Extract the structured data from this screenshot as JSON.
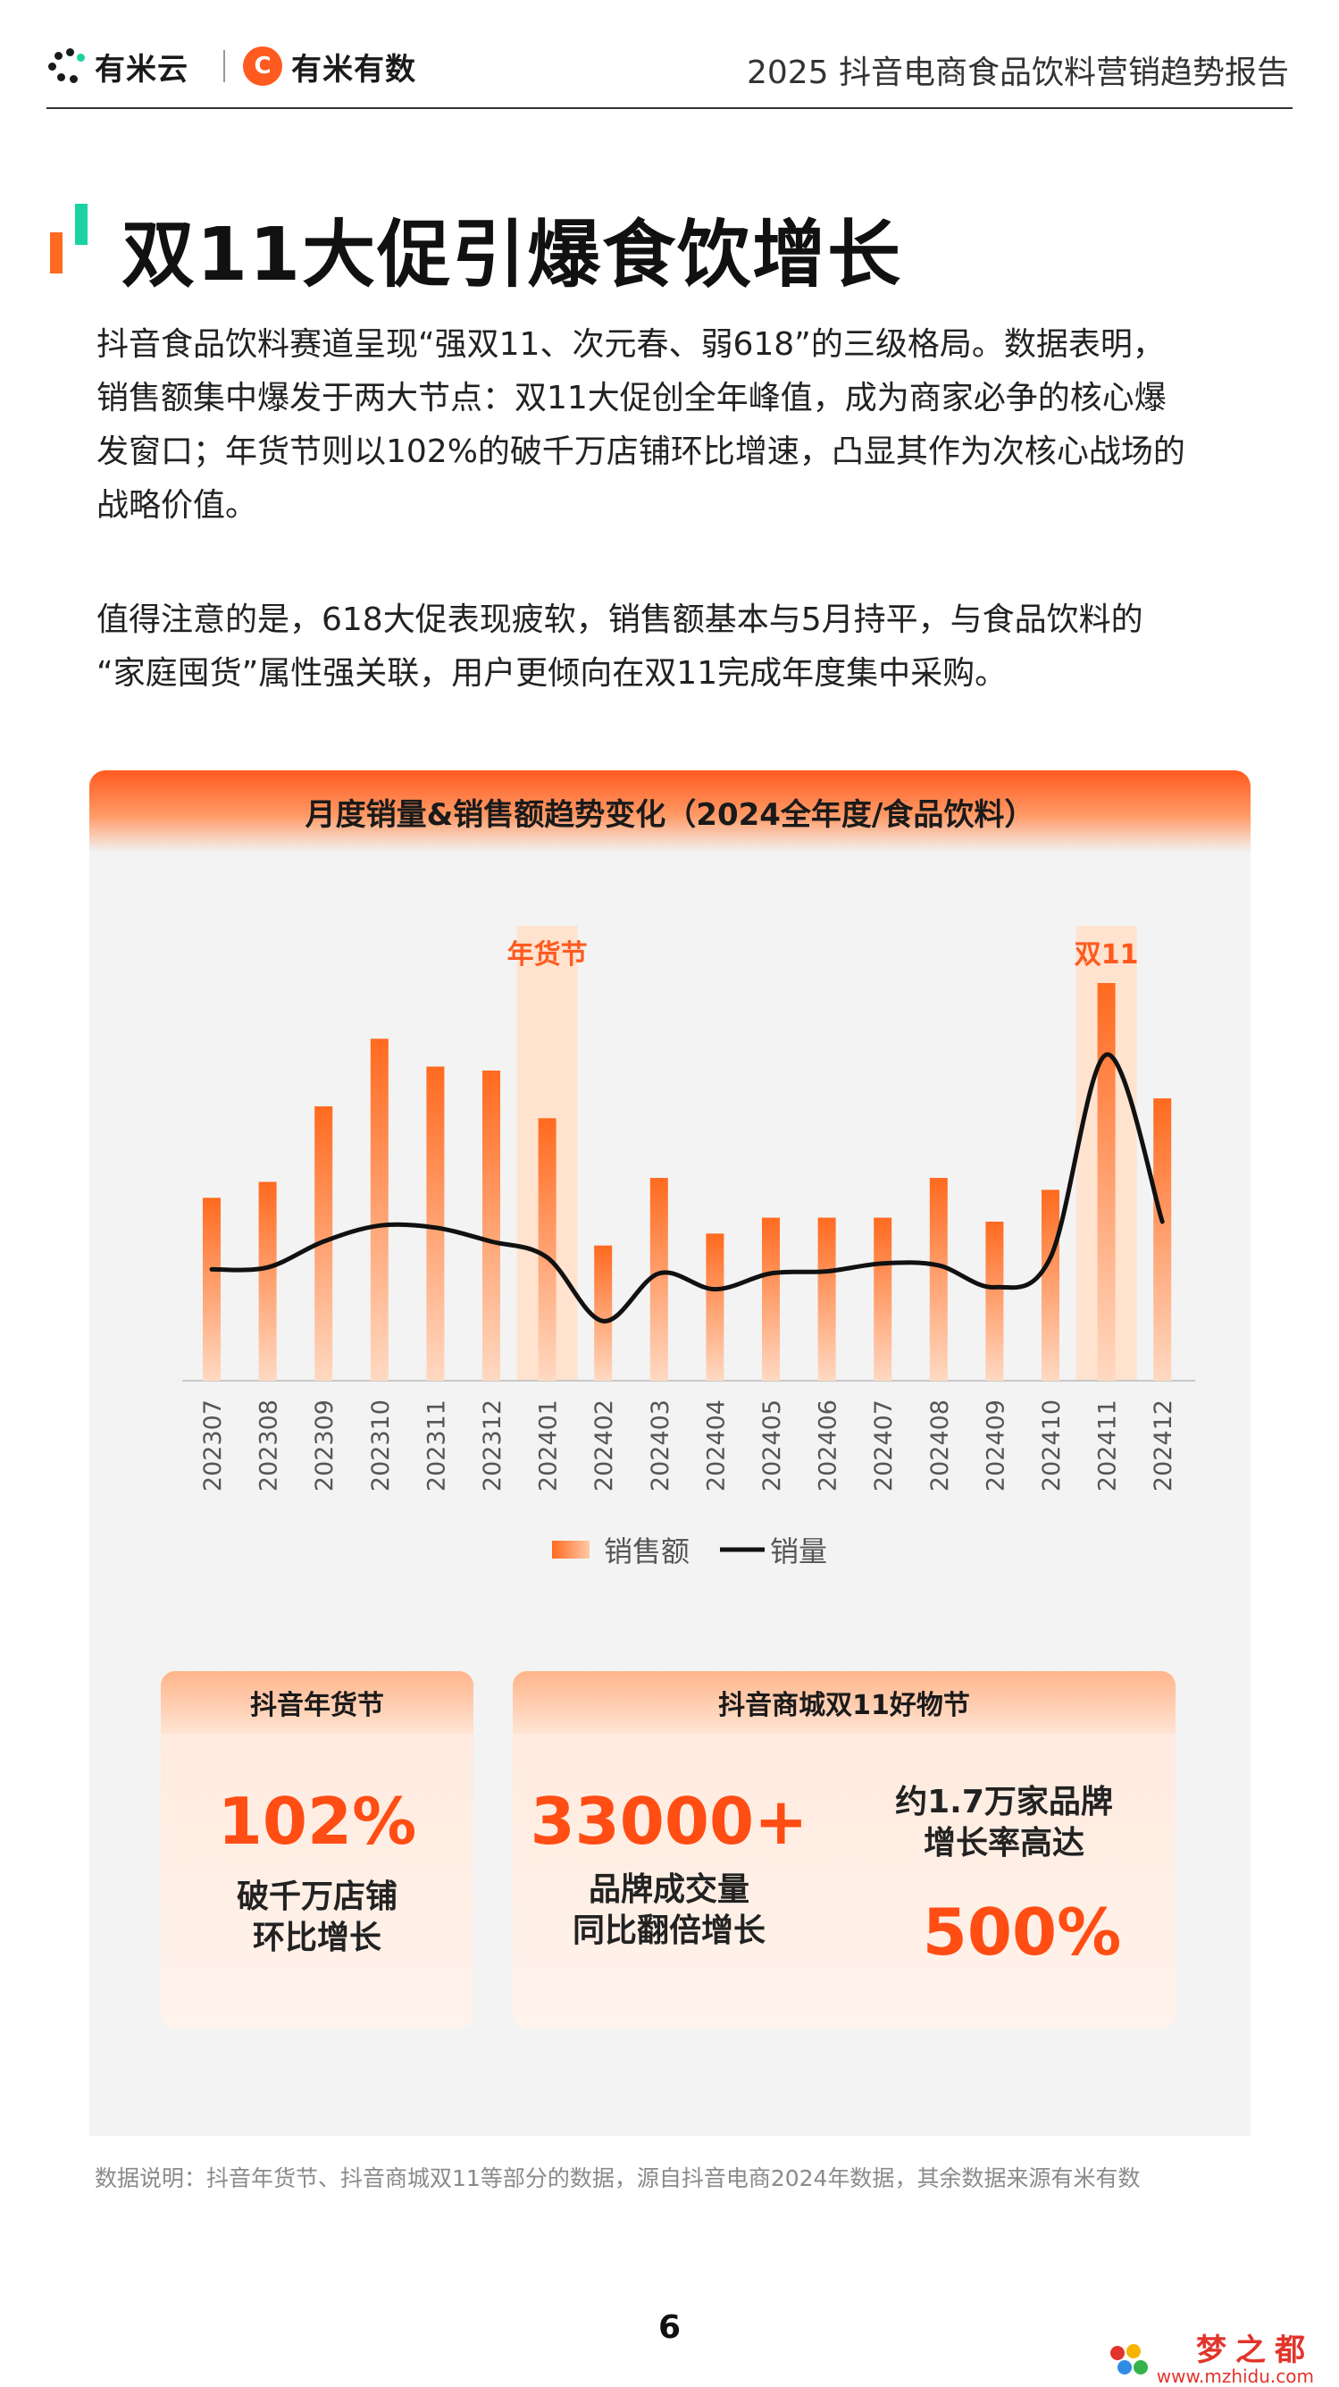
{
  "header": {
    "logo1_text": "有米云",
    "logo2_text": "有米有数",
    "logo2_mark": "C",
    "report_title": "2025 抖音电商食品饮料营销趋势报告"
  },
  "page_title": "双11大促引爆食饮增长",
  "paragraph1": [
    "抖音食品饮料赛道呈现“强双11、次元春、弱618”的三级格局。数据表明，",
    "销售额集中爆发于两大节点：双11大促创全年峰值，成为商家必争的核心爆",
    "发窗口；年货节则以102%的破千万店铺环比增速，凸显其作为次核心战场的",
    "战略价值。"
  ],
  "paragraph2": [
    "值得注意的是，618大促表现疲软，销售额基本与5月持平，与食品饮料的",
    "“家庭囤货”属性强关联，用户更倾向在双11完成年度集中采购。"
  ],
  "chart_data": {
    "type": "bar",
    "title": "月度销量&销售额趋势变化（2024全年度/食品饮料）",
    "categories": [
      "202307",
      "202308",
      "202309",
      "202310",
      "202311",
      "202312",
      "202401",
      "202402",
      "202403",
      "202404",
      "202405",
      "202406",
      "202407",
      "202408",
      "202409",
      "202410",
      "202411",
      "202412"
    ],
    "series": [
      {
        "name": "销售额",
        "type": "bar",
        "values": [
          46,
          50,
          69,
          86,
          79,
          78,
          66,
          34,
          51,
          37,
          41,
          41,
          41,
          51,
          40,
          48,
          100,
          71
        ]
      },
      {
        "name": "销量",
        "type": "line",
        "values": [
          28,
          28.5,
          35,
          39,
          38.5,
          35,
          31,
          15,
          27,
          23,
          27,
          27.5,
          29.5,
          29,
          23.5,
          31,
          82,
          40
        ]
      }
    ],
    "highlights": [
      {
        "label": "年货节",
        "category": "202401"
      },
      {
        "label": "双11",
        "category": "202411"
      }
    ],
    "ylim": [
      0,
      110
    ],
    "legend_position": "bottom",
    "grid": false,
    "colors": {
      "bar": "#ff6a1f",
      "line": "#111111",
      "highlight": "#ffe3cf",
      "highlight_label": "#ff5a1f"
    }
  },
  "card1": {
    "title": "抖音年货节",
    "value": "102%",
    "desc": [
      "破千万店铺",
      "环比增长"
    ]
  },
  "card2": {
    "title": "抖音商城双11好物节",
    "value": "33000+",
    "desc": [
      "品牌成交量",
      "同比翻倍增长"
    ],
    "side_text": [
      "约1.7万家品牌",
      "增长率高达"
    ],
    "side_value": "500%"
  },
  "footnote": "数据说明：抖音年货节、抖音商城双11等部分的数据，源自抖音电商2024年数据，其余数据来源有米有数",
  "page_number": "6",
  "watermark": {
    "cn": "梦之都",
    "url": "www.mzhidu.com"
  }
}
